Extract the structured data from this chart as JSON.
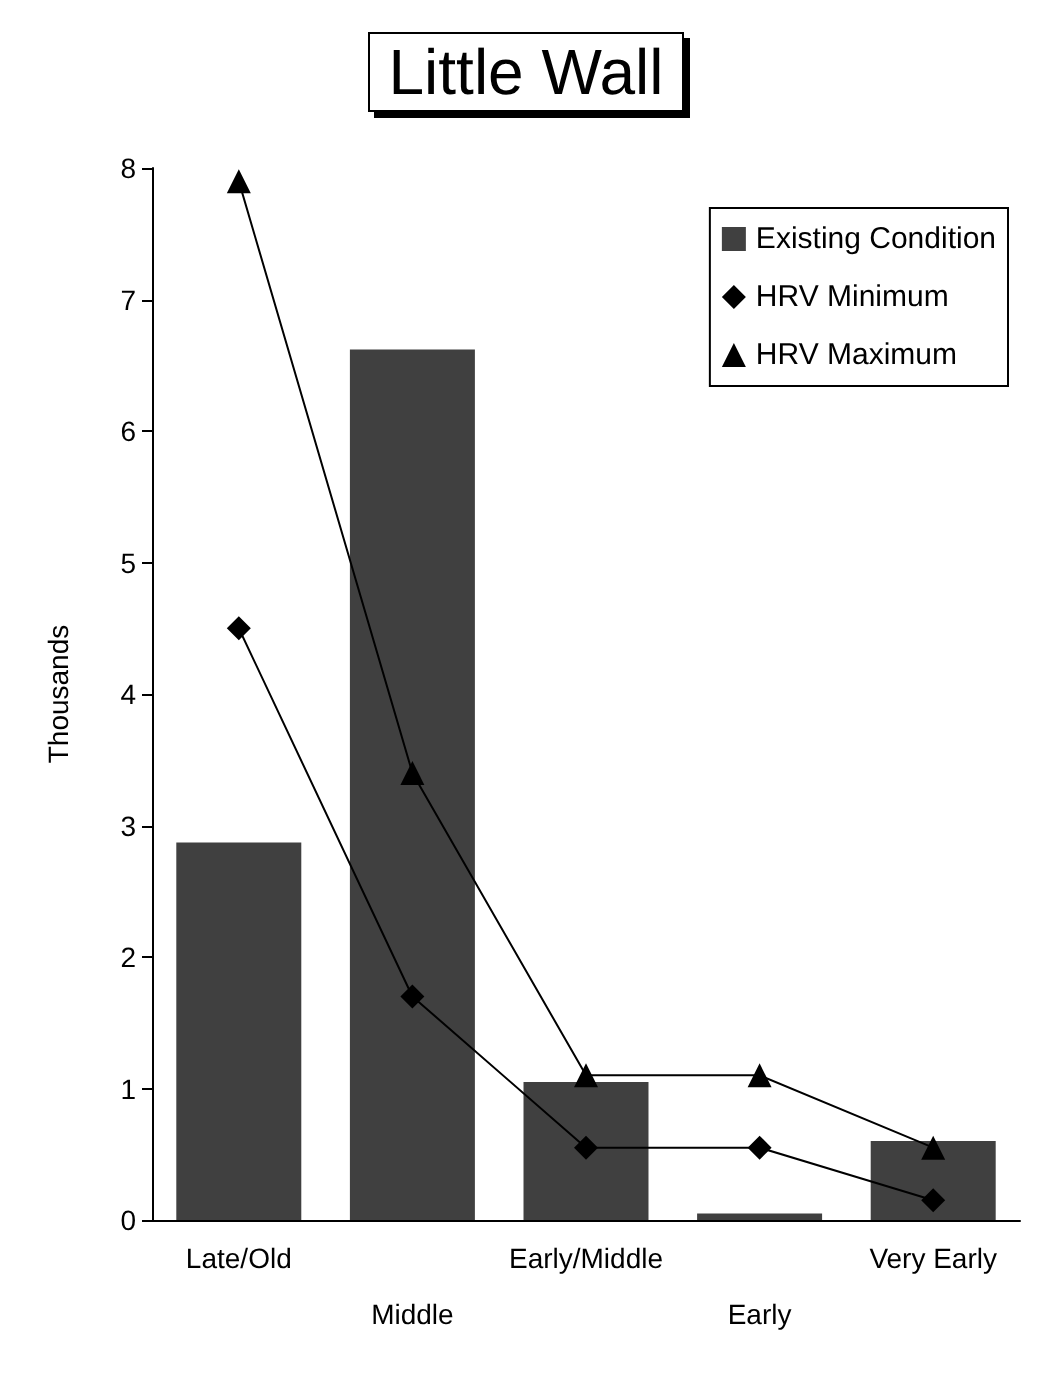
{
  "chart_data": {
    "type": "bar",
    "title": "Little Wall",
    "ylabel": "Thousands",
    "categories": [
      "Late/Old",
      "Middle",
      "Early/Middle",
      "Early",
      "Very Early"
    ],
    "series": [
      {
        "name": "Existing Condition",
        "type": "bar",
        "color": "#404040",
        "values": [
          2.87,
          6.62,
          1.05,
          0.05,
          0.6
        ]
      },
      {
        "name": "HRV Minimum",
        "type": "line",
        "color": "#000000",
        "marker": "diamond",
        "values": [
          4.5,
          1.7,
          0.55,
          0.55,
          0.15
        ]
      },
      {
        "name": "HRV Maximum",
        "type": "line",
        "color": "#000000",
        "marker": "triangle",
        "values": [
          7.9,
          3.4,
          1.1,
          1.1,
          0.55
        ]
      }
    ],
    "ylim": [
      0,
      8
    ],
    "yticks": [
      0,
      1,
      2,
      3,
      4,
      5,
      6,
      7,
      8
    ],
    "grid": false,
    "legend": "top right"
  }
}
